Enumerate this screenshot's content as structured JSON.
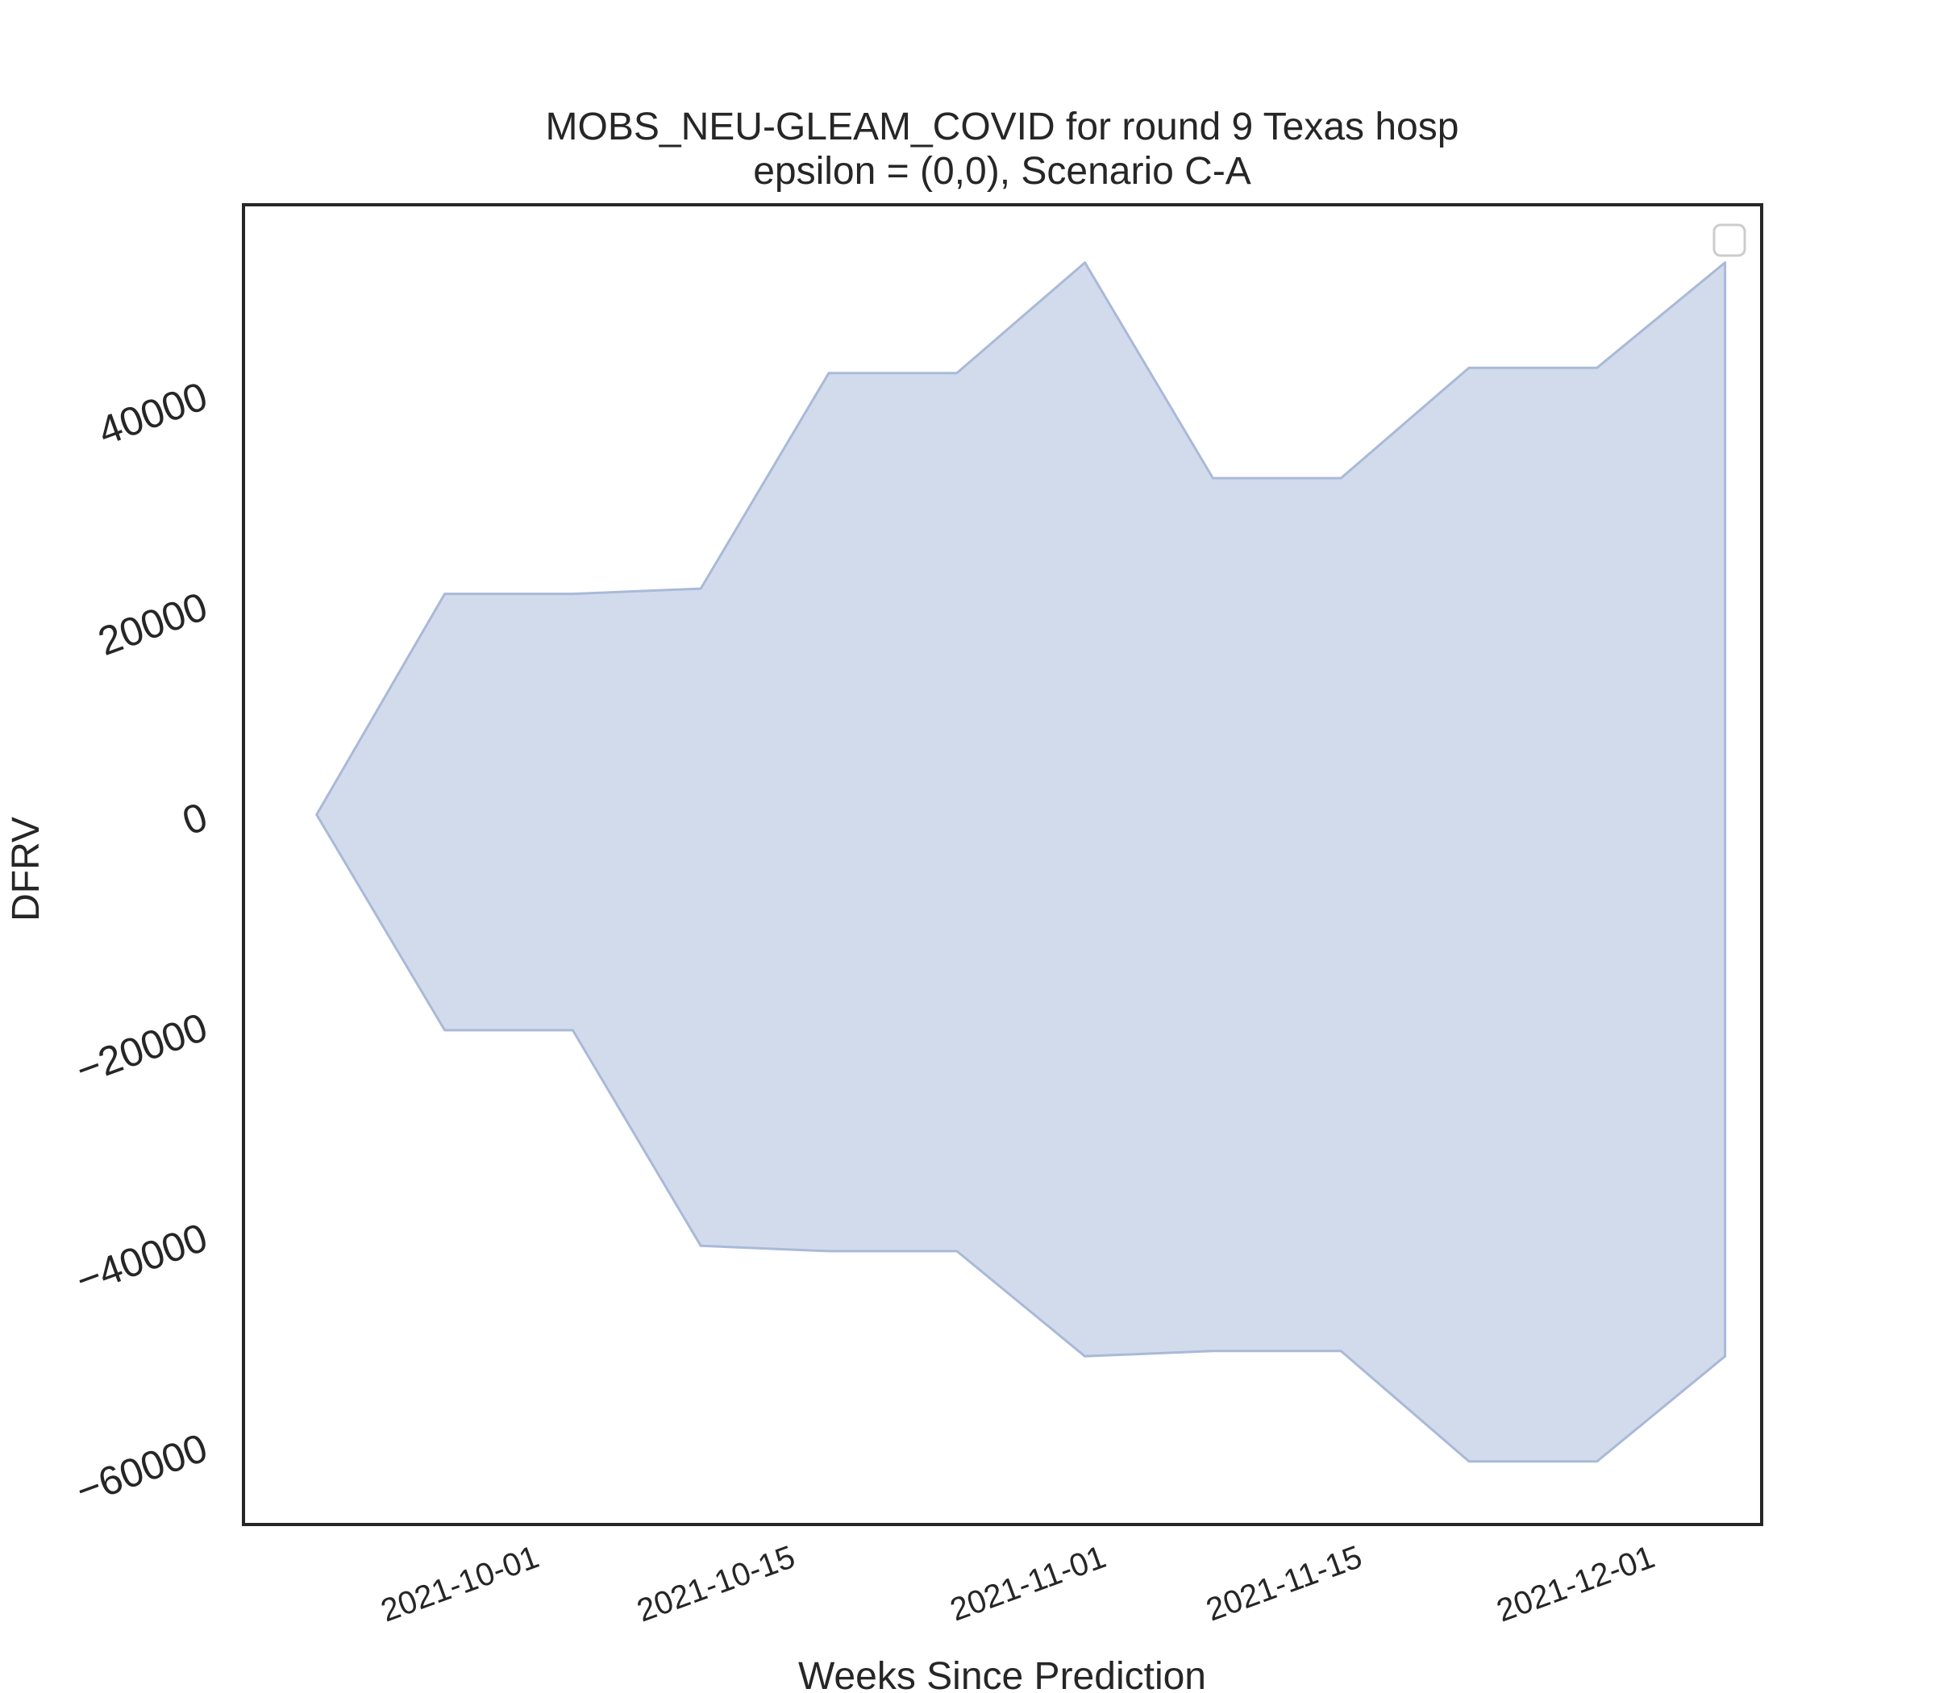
{
  "chart_data": {
    "type": "area",
    "title": "MOBS_NEU-GLEAM_COVID for round 9 Texas hosp",
    "subtitle": "epsilon = (0,0), Scenario C-A",
    "xlabel": "Weeks Since Prediction",
    "ylabel": "DFRV",
    "x_tick_labels": [
      "2021-10-01",
      "2021-10-15",
      "2021-11-01",
      "2021-11-15",
      "2021-12-01"
    ],
    "x_tick_dates": [
      "2021-10-01",
      "2021-10-15",
      "2021-11-01",
      "2021-11-15",
      "2021-12-01"
    ],
    "y_tick_labels": [
      "−60000",
      "−40000",
      "−20000",
      "0",
      "20000",
      "40000"
    ],
    "y_tick_values": [
      -60000,
      -40000,
      -20000,
      0,
      20000,
      40000
    ],
    "xlim": [
      "2021-09-15",
      "2021-12-07"
    ],
    "ylim": [
      -67500,
      58000
    ],
    "grid": false,
    "legend": {
      "placement": "top-right",
      "entries": []
    },
    "fill_color": "#b4c3df",
    "fill_opacity": 0.6,
    "edge_color": "#a9b9d8",
    "series": [
      {
        "x": [
          "2021-09-19",
          "2021-09-26",
          "2021-10-03",
          "2021-10-10",
          "2021-10-17",
          "2021-10-24",
          "2021-10-31",
          "2021-11-07",
          "2021-11-14",
          "2021-11-21",
          "2021-11-28",
          "2021-12-05"
        ],
        "lower": [
          0,
          -20500,
          -20500,
          -41000,
          -41500,
          -41500,
          -51500,
          -51000,
          -51000,
          -61500,
          -61500,
          -51500
        ],
        "upper": [
          0,
          21000,
          21000,
          21500,
          42000,
          42000,
          52500,
          32000,
          32000,
          42500,
          42500,
          52500
        ]
      }
    ]
  }
}
